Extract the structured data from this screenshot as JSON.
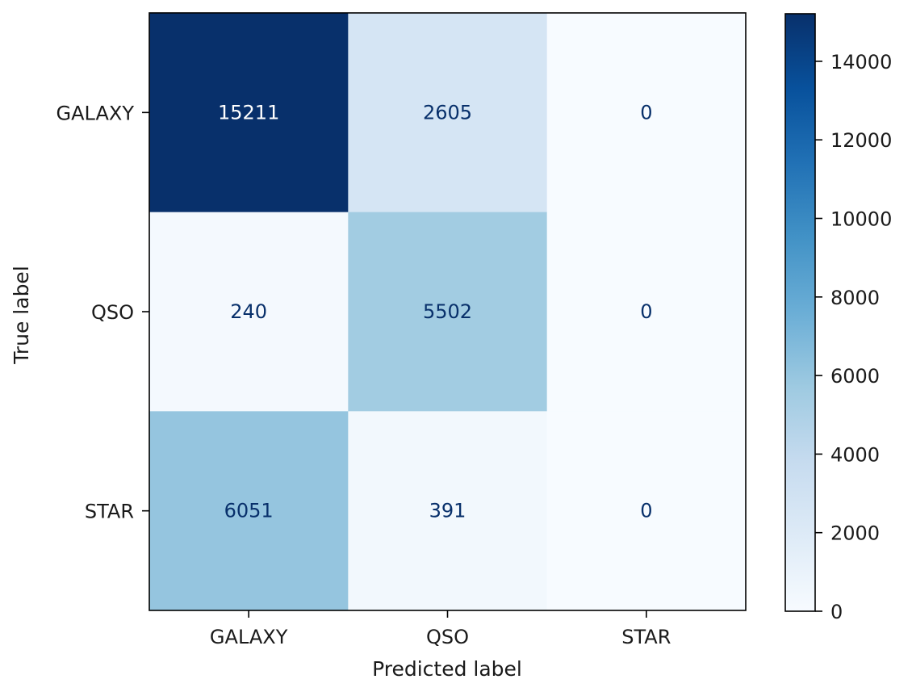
{
  "chart_data": {
    "type": "heatmap",
    "title": "",
    "xlabel": "Predicted label",
    "ylabel": "True label",
    "x_categories": [
      "GALAXY",
      "QSO",
      "STAR"
    ],
    "y_categories": [
      "GALAXY",
      "QSO",
      "STAR"
    ],
    "matrix": [
      [
        15211,
        2605,
        0
      ],
      [
        240,
        5502,
        0
      ],
      [
        6051,
        391,
        0
      ]
    ],
    "colormap": "Blues",
    "color_min": 0,
    "color_max": 15211,
    "colorbar_ticks": [
      0,
      2000,
      4000,
      6000,
      8000,
      10000,
      12000,
      14000
    ],
    "text_color_light_cells": "#08306b",
    "text_color_dark_cells": "#ffffff",
    "grid": false,
    "colorbar_position": "right"
  }
}
